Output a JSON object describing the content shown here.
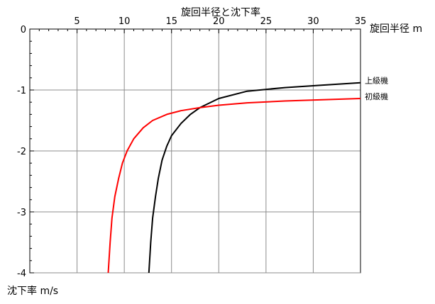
{
  "chart_data": {
    "type": "line",
    "title": "旋回半径と沈下率",
    "xlabel": "旋回半径 m",
    "ylabel": "沈下率 m/s",
    "xlim": [
      0,
      35
    ],
    "ylim": [
      -4,
      0
    ],
    "x_ticks": [
      0,
      5,
      10,
      15,
      20,
      25,
      30,
      35
    ],
    "x_tick_labels": [
      "",
      "5",
      "10",
      "15",
      "20",
      "25",
      "30",
      "35"
    ],
    "y_ticks": [
      0,
      -1,
      -2,
      -3,
      -4
    ],
    "y_tick_labels": [
      "0",
      "-1",
      "-2",
      "-3",
      "-4"
    ],
    "x_axis_position": "top",
    "grid": true,
    "legend": "inline labels at right end of each series",
    "series": [
      {
        "name": "上級機",
        "color": "#000000",
        "points": [
          [
            12.6,
            -4.0
          ],
          [
            12.8,
            -3.5
          ],
          [
            13.0,
            -3.1
          ],
          [
            13.3,
            -2.75
          ],
          [
            13.6,
            -2.45
          ],
          [
            14.0,
            -2.15
          ],
          [
            14.5,
            -1.92
          ],
          [
            15.0,
            -1.75
          ],
          [
            16.0,
            -1.55
          ],
          [
            17.0,
            -1.4
          ],
          [
            18.0,
            -1.29
          ],
          [
            20.0,
            -1.14
          ],
          [
            23.0,
            -1.02
          ],
          [
            27.0,
            -0.96
          ],
          [
            31.0,
            -0.92
          ],
          [
            35.0,
            -0.88
          ]
        ]
      },
      {
        "name": "初級機",
        "color": "#ff0000",
        "points": [
          [
            8.3,
            -4.0
          ],
          [
            8.5,
            -3.5
          ],
          [
            8.7,
            -3.1
          ],
          [
            9.0,
            -2.75
          ],
          [
            9.4,
            -2.45
          ],
          [
            9.8,
            -2.2
          ],
          [
            10.3,
            -2.0
          ],
          [
            11.0,
            -1.8
          ],
          [
            12.0,
            -1.62
          ],
          [
            13.0,
            -1.5
          ],
          [
            14.5,
            -1.4
          ],
          [
            16.0,
            -1.34
          ],
          [
            18.0,
            -1.29
          ],
          [
            20.0,
            -1.25
          ],
          [
            23.0,
            -1.21
          ],
          [
            27.0,
            -1.18
          ],
          [
            31.0,
            -1.16
          ],
          [
            35.0,
            -1.14
          ]
        ]
      }
    ]
  }
}
